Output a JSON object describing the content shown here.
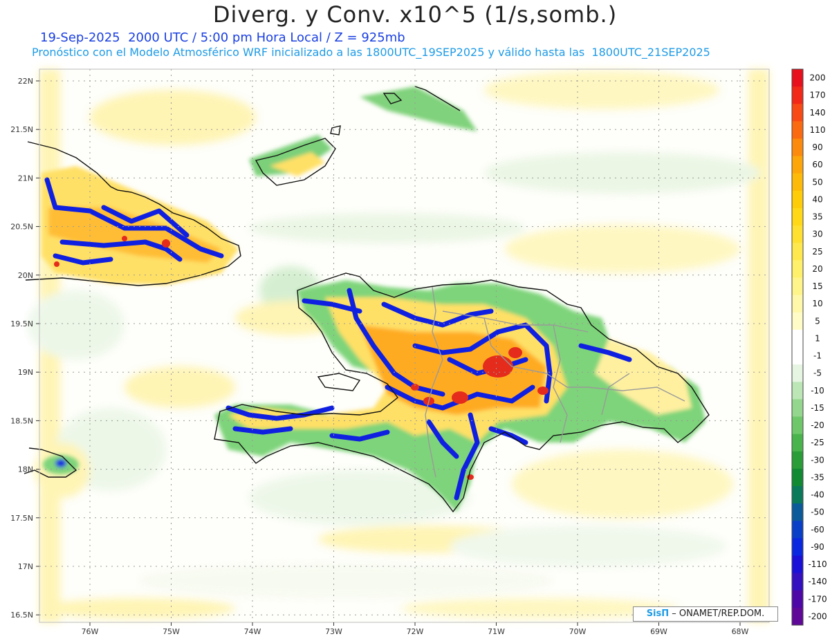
{
  "title": "Diverg. y Conv. x10^5 (1/s,somb.)",
  "subtitle_line1": "19-Sep-2025  2000 UTC / 5:00 pm Hora Local / Z = 925mb",
  "subtitle_line2": "Pronóstico con el Modelo Atmosférico WRF inicializado a las 1800UTC_19SEP2025 y válido hasta las  1800UTC_21SEP2025",
  "credit": {
    "logo": "SisΠ",
    "text": "– ONAMET/REP.DOM."
  },
  "lat_labels": [
    "22N",
    "21.5N",
    "21N",
    "20.5N",
    "20N",
    "19.5N",
    "19N",
    "18.5N",
    "18N",
    "17.5N",
    "17N",
    "16.5N"
  ],
  "lon_labels": [
    "76W",
    "75W",
    "74W",
    "73W",
    "72W",
    "71W",
    "70W",
    "69W",
    "68W"
  ],
  "colorbar": {
    "labels": [
      "200",
      "170",
      "140",
      "110",
      "90",
      "60",
      "50",
      "40",
      "35",
      "30",
      "25",
      "20",
      "15",
      "10",
      "5",
      "1",
      "-1",
      "-5",
      "-10",
      "-15",
      "-20",
      "-25",
      "-30",
      "-35",
      "-40",
      "-50",
      "-60",
      "-90",
      "-110",
      "-140",
      "-170",
      "-200"
    ],
    "colors": [
      "#e8101c",
      "#f22818",
      "#f84a14",
      "#fa6a10",
      "#fc8a0c",
      "#fda60a",
      "#feba08",
      "#ffcc0a",
      "#ffd818",
      "#ffe030",
      "#ffe84e",
      "#fff06c",
      "#fff48a",
      "#fff8aa",
      "#fffcc8",
      "#ffffff",
      "#ffffff",
      "#e6f5e2",
      "#bce6b6",
      "#94d68e",
      "#6ec86a",
      "#4ab44c",
      "#2a9c38",
      "#128a34",
      "#0a7a5a",
      "#0c5a9a",
      "#0a40c8",
      "#0a28e0",
      "#1a10d8",
      "#3410c0",
      "#4e08a8",
      "#600898"
    ]
  }
}
